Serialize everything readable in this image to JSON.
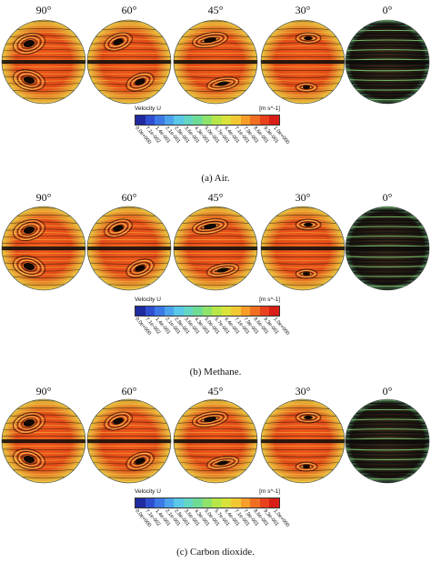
{
  "panels": [
    {
      "caption": "(a) Air.",
      "angles": [
        "90°",
        "60°",
        "45°",
        "30°",
        "0°"
      ],
      "legend": {
        "title": "Velocity U",
        "unit": "[m s^-1]",
        "ticks": [
          "0.0e+000",
          "7.1e-002",
          "1.4e-001",
          "2.1e-001",
          "2.8e-001",
          "3.6e-001",
          "4.3e-001",
          "5.0e-001",
          "5.7e-001",
          "6.4e-001",
          "7.1e-001",
          "7.9e-001",
          "8.6e-001",
          "9.3e-001",
          "1.0e+000"
        ]
      }
    },
    {
      "caption": "(b) Methane.",
      "angles": [
        "90°",
        "60°",
        "45°",
        "30°",
        "0°"
      ],
      "legend": {
        "title": "Velocity U",
        "unit": "[m s^-1]",
        "ticks": [
          "0.0e+000",
          "7.1e-002",
          "1.4e-001",
          "2.1e-001",
          "2.8e-001",
          "3.6e-001",
          "4.3e-001",
          "5.0e-001",
          "5.7e-001",
          "6.4e-001",
          "7.1e-001",
          "7.9e-001",
          "8.6e-001",
          "9.3e-001",
          "1.0e+000"
        ]
      }
    },
    {
      "caption": "(c) Carbon dioxide.",
      "angles": [
        "90°",
        "60°",
        "45°",
        "30°",
        "0°"
      ],
      "legend": {
        "title": "Velocity U",
        "unit": "[m s^-1]",
        "ticks": [
          "0.0e+000",
          "7.1e-002",
          "1.4e-001",
          "2.1e-001",
          "2.8e-001",
          "3.6e-001",
          "4.3e-001",
          "5.0e-001",
          "5.7e-001",
          "6.4e-001",
          "7.1e-001",
          "7.9e-001",
          "8.6e-001",
          "9.3e-001",
          "1.0e+000"
        ]
      }
    }
  ],
  "colormap": [
    "#1f2a9e",
    "#2f4fd0",
    "#3c79e6",
    "#4ba3ec",
    "#5ac8e8",
    "#63d6c4",
    "#6fdc96",
    "#8ee36a",
    "#b6e648",
    "#d9e23a",
    "#f2c832",
    "#f69d2a",
    "#f06f22",
    "#e8411c",
    "#d81e16"
  ]
}
